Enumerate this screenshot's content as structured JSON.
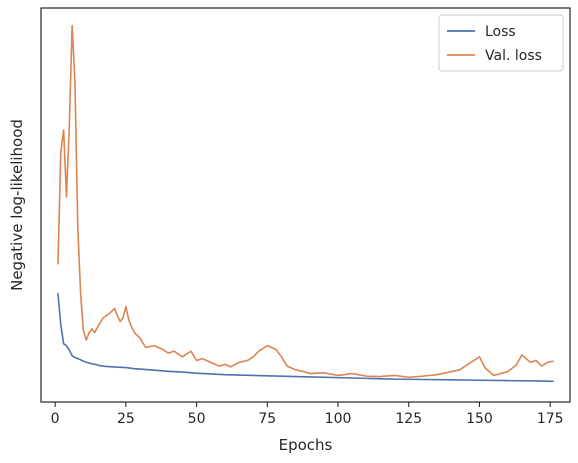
{
  "chart_data": {
    "type": "line",
    "title": "",
    "xlabel": "Epochs",
    "ylabel": "Negative log-likelihood",
    "xlim": [
      -5,
      182
    ],
    "ylim": [
      0,
      1
    ],
    "xticks": [
      0,
      25,
      50,
      75,
      100,
      125,
      150,
      175
    ],
    "xtick_labels": [
      "0",
      "25",
      "50",
      "75",
      "100",
      "125",
      "150",
      "175"
    ],
    "yticks_shown": false,
    "grid": false,
    "legend_position": "top-right",
    "series": [
      {
        "name": "Loss",
        "color": "#4c72b0",
        "x": [
          1,
          2,
          3,
          4,
          5,
          6,
          7,
          8,
          9,
          10,
          12,
          14,
          16,
          18,
          20,
          22,
          25,
          28,
          30,
          35,
          40,
          45,
          50,
          55,
          60,
          65,
          70,
          75,
          80,
          85,
          90,
          95,
          100,
          110,
          120,
          130,
          140,
          150,
          160,
          170,
          176
        ],
        "y": [
          0.27,
          0.185,
          0.135,
          0.13,
          0.118,
          0.103,
          0.098,
          0.095,
          0.092,
          0.088,
          0.083,
          0.08,
          0.076,
          0.074,
          0.073,
          0.072,
          0.071,
          0.068,
          0.067,
          0.064,
          0.061,
          0.059,
          0.056,
          0.054,
          0.052,
          0.051,
          0.05,
          0.049,
          0.048,
          0.047,
          0.046,
          0.045,
          0.044,
          0.042,
          0.04,
          0.039,
          0.038,
          0.037,
          0.036,
          0.035,
          0.034
        ]
      },
      {
        "name": "Val. loss",
        "color": "#dd8452",
        "x": [
          1,
          2,
          3,
          4,
          5,
          6,
          7,
          8,
          9,
          10,
          11,
          12,
          13,
          14,
          15,
          17,
          19,
          21,
          22,
          23,
          24,
          25,
          26,
          27,
          28,
          30,
          32,
          35,
          38,
          40,
          42,
          45,
          48,
          50,
          52,
          55,
          58,
          60,
          62,
          65,
          68,
          70,
          72,
          75,
          78,
          80,
          82,
          85,
          88,
          90,
          95,
          100,
          105,
          110,
          115,
          120,
          125,
          130,
          135,
          140,
          143,
          145,
          150,
          152,
          155,
          160,
          163,
          165,
          168,
          170,
          172,
          174,
          176
        ],
        "y": [
          0.35,
          0.65,
          0.71,
          0.53,
          0.72,
          0.99,
          0.84,
          0.45,
          0.27,
          0.17,
          0.145,
          0.165,
          0.175,
          0.165,
          0.18,
          0.205,
          0.215,
          0.23,
          0.21,
          0.195,
          0.205,
          0.235,
          0.2,
          0.18,
          0.165,
          0.15,
          0.125,
          0.13,
          0.12,
          0.11,
          0.115,
          0.1,
          0.115,
          0.09,
          0.095,
          0.085,
          0.075,
          0.08,
          0.073,
          0.085,
          0.09,
          0.1,
          0.115,
          0.13,
          0.12,
          0.1,
          0.075,
          0.065,
          0.06,
          0.055,
          0.057,
          0.05,
          0.055,
          0.048,
          0.047,
          0.05,
          0.045,
          0.048,
          0.052,
          0.06,
          0.065,
          0.075,
          0.1,
          0.07,
          0.05,
          0.06,
          0.078,
          0.105,
          0.085,
          0.09,
          0.075,
          0.085,
          0.088
        ]
      }
    ]
  }
}
